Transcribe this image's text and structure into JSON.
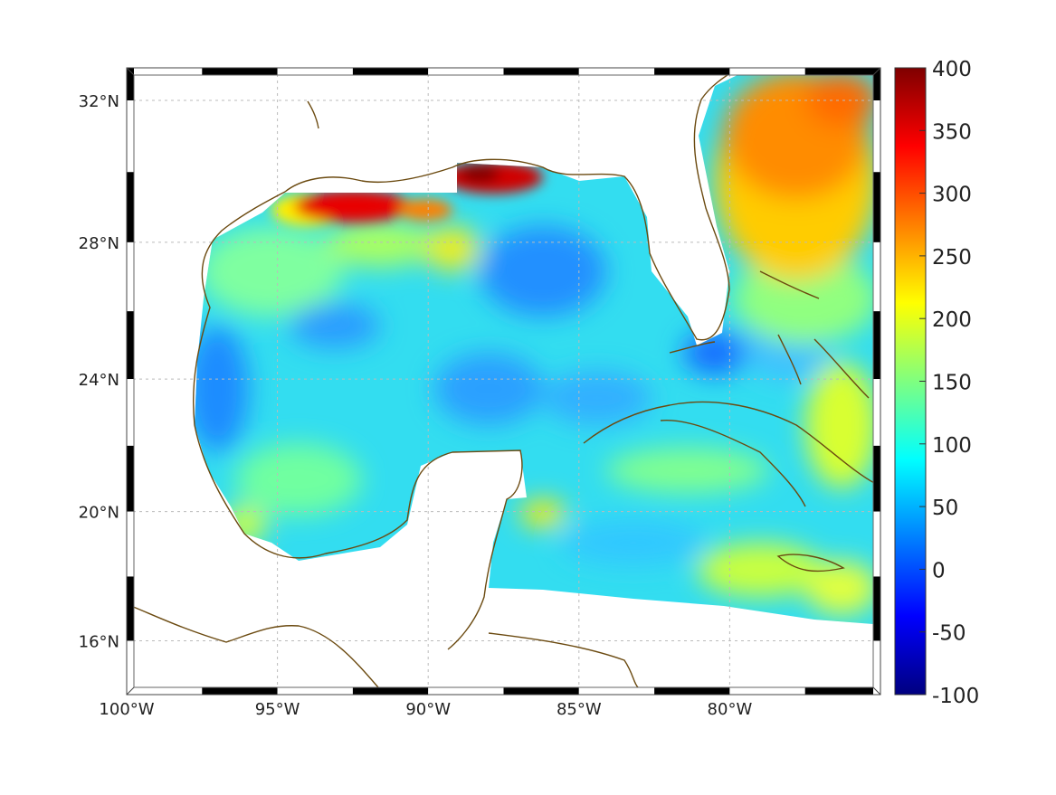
{
  "map": {
    "lon_labels": [
      "100°W",
      "95°W",
      "90°W",
      "85°W",
      "80°W"
    ],
    "lon_values": [
      -100,
      -95,
      -90,
      -85,
      -80
    ],
    "lat_labels": [
      "32°N",
      "28°N",
      "24°N",
      "20°N",
      "16°N"
    ],
    "lat_values": [
      32,
      28,
      24,
      20,
      16
    ],
    "lon_range": [
      -100,
      -75
    ],
    "lat_range": [
      14.2,
      33
    ],
    "coast_color": "#6b4a10"
  },
  "colorbar": {
    "ticks": [
      "400",
      "350",
      "300",
      "250",
      "200",
      "150",
      "100",
      "50",
      "0",
      "-50",
      "-100"
    ],
    "range": [
      -100,
      400
    ],
    "colormap": "jet"
  }
}
